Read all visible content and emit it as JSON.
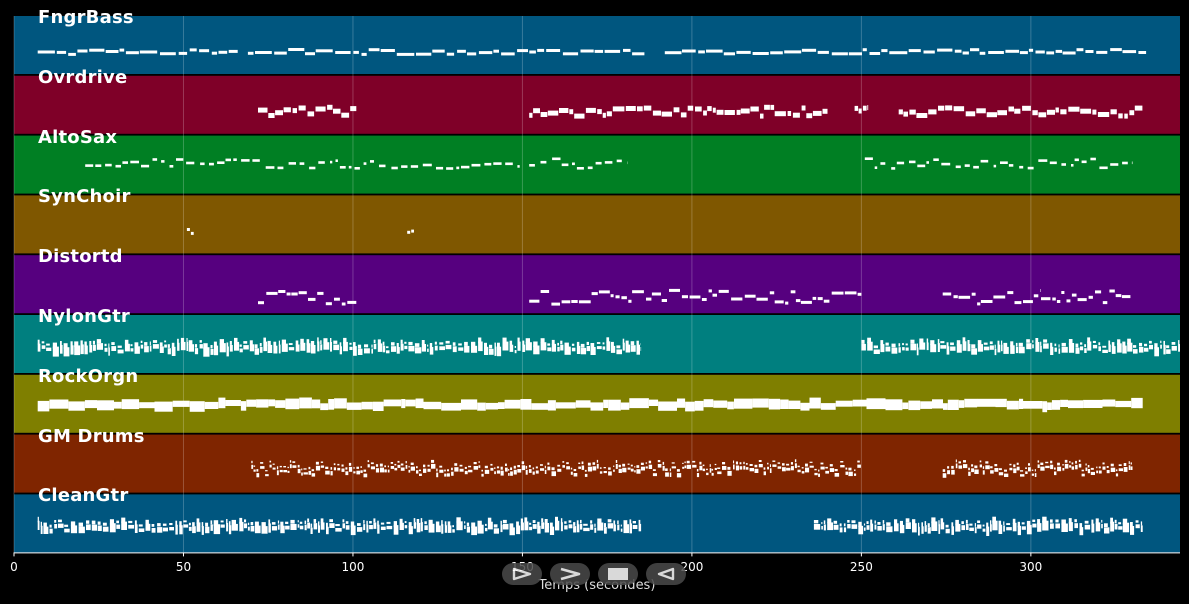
{
  "chart_data": {
    "type": "piano-roll",
    "xlabel": "Temps (secondes)",
    "xlim": [
      0,
      344
    ],
    "xticks": [
      0,
      50,
      100,
      150,
      200,
      250,
      300
    ],
    "tracks": [
      {
        "name": "FngrBass",
        "color": "#00567f",
        "style": "line",
        "segments": [
          [
            7,
            66
          ],
          [
            69,
            186
          ],
          [
            192,
            334
          ]
        ]
      },
      {
        "name": "Ovrdrive",
        "color": "#7f0028",
        "style": "blocks",
        "segments": [
          [
            72,
            101
          ],
          [
            152,
            240
          ],
          [
            248,
            252
          ],
          [
            261,
            333
          ]
        ]
      },
      {
        "name": "AltoSax",
        "color": "#007f23",
        "style": "sparse",
        "segments": [
          [
            21,
            150
          ],
          [
            152,
            181
          ],
          [
            251,
            330
          ]
        ]
      },
      {
        "name": "SynChoir",
        "color": "#7f5700",
        "style": "dots",
        "segments": [
          [
            51,
            53
          ],
          [
            116,
            118
          ]
        ]
      },
      {
        "name": "Distortd",
        "color": "#56007f",
        "style": "melody",
        "segments": [
          [
            72,
            101
          ],
          [
            152,
            250
          ],
          [
            274,
            303
          ],
          [
            303,
            330
          ]
        ]
      },
      {
        "name": "NylonGtr",
        "color": "#007f7f",
        "style": "dense",
        "segments": [
          [
            7,
            185
          ],
          [
            250,
            344
          ]
        ]
      },
      {
        "name": "RockOrgn",
        "color": "#7f7f00",
        "style": "thick",
        "segments": [
          [
            7,
            333
          ]
        ]
      },
      {
        "name": "GM Drums",
        "color": "#7f2500",
        "style": "drums",
        "segments": [
          [
            70,
            250
          ],
          [
            274,
            330
          ]
        ]
      },
      {
        "name": "CleanGtr",
        "color": "#00567f",
        "style": "dense",
        "segments": [
          [
            7,
            185
          ],
          [
            236,
            333
          ]
        ]
      }
    ]
  },
  "transport": {
    "buttons": [
      {
        "name": "play-from-start-button",
        "icon": "play-outline-icon"
      },
      {
        "name": "play-button",
        "icon": "chevron-right-icon"
      },
      {
        "name": "stop-button",
        "icon": "stop-icon"
      },
      {
        "name": "rewind-button",
        "icon": "rewind-icon"
      }
    ]
  }
}
